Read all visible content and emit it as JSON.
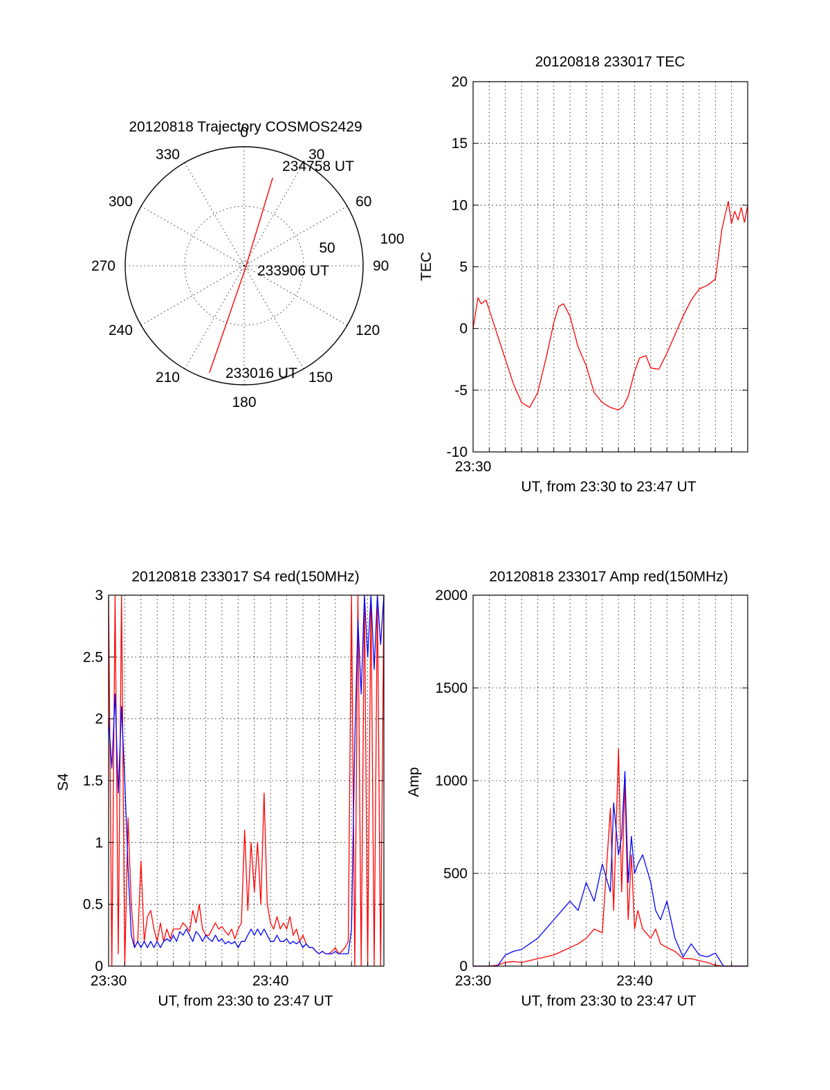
{
  "chart_data": [
    {
      "type": "polar",
      "title": "20120818 Trajectory COSMOS2429",
      "angle_labels": [
        "0",
        "30",
        "60",
        "90",
        "120",
        "150",
        "180",
        "210",
        "240",
        "270",
        "300",
        "330"
      ],
      "radial_labels": [
        "50",
        "100"
      ],
      "grid": true,
      "series": [
        {
          "color": "#ff0000",
          "points": [
            {
              "azimuth": 198,
              "elevation": 5
            },
            {
              "azimuth": 150,
              "elevation": 88
            },
            {
              "azimuth": 18,
              "elevation": 20
            }
          ]
        }
      ],
      "annotations": [
        "234758 UT",
        "233906 UT",
        "233016 UT"
      ]
    },
    {
      "type": "line",
      "title": "20120818 233017 TEC",
      "ylabel": "TEC",
      "xlabel": "UT, from 23:30 to 23:47 UT",
      "ylim": [
        -10,
        20
      ],
      "xlim": [
        0,
        17
      ],
      "yticks": [
        "-10",
        "-5",
        "0",
        "5",
        "10",
        "15",
        "20"
      ],
      "xticks": [
        {
          "x": 0,
          "label": "23:30"
        }
      ],
      "grid": true,
      "series": [
        {
          "color": "#ff0000",
          "x": [
            0,
            0.3,
            0.5,
            0.8,
            1.0,
            1.5,
            2.0,
            2.5,
            3.0,
            3.5,
            4.0,
            4.5,
            5.0,
            5.3,
            5.6,
            6.0,
            6.5,
            7.0,
            7.5,
            8.0,
            8.5,
            9.0,
            9.3,
            9.6,
            10.0,
            10.3,
            10.7,
            11.0,
            11.5,
            12.0,
            12.5,
            13.0,
            13.5,
            14.0,
            14.5,
            15.0,
            15.4,
            15.6,
            15.8,
            16.0,
            16.2,
            16.4,
            16.6,
            16.8,
            17.0
          ],
          "y": [
            0,
            2.5,
            2.0,
            2.3,
            1.5,
            -0.5,
            -2.5,
            -4.5,
            -6.0,
            -6.4,
            -5.2,
            -2.5,
            0.5,
            1.8,
            2.0,
            1.0,
            -1.5,
            -3.0,
            -5.2,
            -6.0,
            -6.4,
            -6.6,
            -6.3,
            -5.5,
            -3.5,
            -2.4,
            -2.2,
            -3.2,
            -3.3,
            -2.0,
            -0.5,
            1.0,
            2.3,
            3.2,
            3.5,
            4.0,
            8.0,
            9.2,
            10.3,
            8.5,
            9.5,
            8.8,
            9.8,
            8.6,
            10.0
          ]
        }
      ]
    },
    {
      "type": "line",
      "title": "20120818 233017 S4 red(150MHz)",
      "ylabel": "S4",
      "xlabel": "UT, from 23:30 to 23:47 UT",
      "ylim": [
        0,
        3
      ],
      "xlim": [
        0,
        17
      ],
      "yticks": [
        "0",
        "0.5",
        "1",
        "1.5",
        "2",
        "2.5",
        "3"
      ],
      "xticks": [
        {
          "x": 0,
          "label": "23:30"
        },
        {
          "x": 10,
          "label": "23:40"
        }
      ],
      "grid": true,
      "series": [
        {
          "color": "#ff0000",
          "x": [
            0.0,
            0.2,
            0.4,
            0.6,
            0.8,
            1.0,
            1.2,
            1.4,
            1.6,
            1.8,
            2.0,
            2.2,
            2.4,
            2.6,
            2.8,
            3.0,
            3.2,
            3.4,
            3.6,
            3.8,
            4.0,
            4.2,
            4.4,
            4.6,
            4.8,
            5.0,
            5.2,
            5.4,
            5.6,
            5.8,
            6.0,
            6.2,
            6.4,
            6.6,
            6.8,
            7.0,
            7.2,
            7.4,
            7.6,
            7.8,
            8.0,
            8.2,
            8.4,
            8.6,
            8.8,
            9.0,
            9.2,
            9.4,
            9.6,
            9.8,
            10.0,
            10.2,
            10.4,
            10.6,
            10.8,
            11.0,
            11.2,
            11.4,
            11.6,
            11.8,
            12.0,
            12.2,
            12.4,
            12.6,
            12.8,
            13.0,
            13.2,
            13.4,
            13.6,
            13.8,
            14.0,
            14.2,
            14.4,
            14.6,
            14.8,
            15.0,
            15.2,
            15.4,
            15.6,
            15.8,
            16.0,
            16.2,
            16.4,
            16.6,
            16.8,
            17.0
          ],
          "y": [
            3.0,
            0.0,
            3.0,
            0.1,
            3.0,
            0.0,
            1.2,
            0.5,
            0.15,
            0.2,
            0.85,
            0.2,
            0.4,
            0.45,
            0.3,
            0.2,
            0.35,
            0.2,
            0.3,
            0.22,
            0.3,
            0.3,
            0.3,
            0.35,
            0.32,
            0.28,
            0.45,
            0.35,
            0.5,
            0.3,
            0.25,
            0.25,
            0.3,
            0.35,
            0.3,
            0.32,
            0.28,
            0.25,
            0.3,
            0.22,
            0.3,
            0.35,
            1.1,
            0.45,
            1.0,
            0.6,
            1.0,
            0.5,
            1.4,
            0.5,
            0.35,
            0.3,
            0.4,
            0.3,
            0.35,
            0.3,
            0.4,
            0.25,
            0.3,
            0.2,
            0.25,
            0.18,
            0.15,
            0.15,
            0.12,
            0.1,
            0.12,
            0.1,
            0.1,
            0.12,
            0.15,
            0.1,
            0.12,
            0.15,
            0.2,
            3.0,
            0.0,
            3.0,
            0.0,
            3.0,
            0.0,
            3.0,
            0.0,
            3.0,
            0.0,
            3.0
          ]
        },
        {
          "color": "#0000ff",
          "x": [
            0.0,
            0.2,
            0.4,
            0.6,
            0.8,
            1.0,
            1.2,
            1.4,
            1.6,
            1.8,
            2.0,
            2.2,
            2.4,
            2.6,
            2.8,
            3.0,
            3.2,
            3.4,
            3.6,
            3.8,
            4.0,
            4.2,
            4.4,
            4.6,
            4.8,
            5.0,
            5.2,
            5.4,
            5.6,
            5.8,
            6.0,
            6.2,
            6.4,
            6.6,
            6.8,
            7.0,
            7.2,
            7.4,
            7.6,
            7.8,
            8.0,
            8.2,
            8.4,
            8.6,
            8.8,
            9.0,
            9.2,
            9.4,
            9.6,
            9.8,
            10.0,
            10.2,
            10.4,
            10.6,
            10.8,
            11.0,
            11.2,
            11.4,
            11.6,
            11.8,
            12.0,
            12.2,
            12.4,
            12.6,
            12.8,
            13.0,
            13.2,
            13.4,
            13.6,
            13.8,
            14.0,
            14.2,
            14.4,
            14.6,
            14.8,
            15.0,
            15.2,
            15.4,
            15.6,
            15.8,
            16.0,
            16.2,
            16.4,
            16.6,
            16.8,
            17.0
          ],
          "y": [
            2.0,
            1.6,
            2.2,
            1.4,
            2.1,
            1.5,
            0.8,
            0.25,
            0.15,
            0.2,
            0.15,
            0.2,
            0.15,
            0.2,
            0.15,
            0.2,
            0.15,
            0.2,
            0.22,
            0.2,
            0.25,
            0.2,
            0.28,
            0.25,
            0.3,
            0.25,
            0.2,
            0.28,
            0.25,
            0.2,
            0.25,
            0.22,
            0.2,
            0.25,
            0.2,
            0.22,
            0.18,
            0.2,
            0.18,
            0.2,
            0.15,
            0.2,
            0.2,
            0.25,
            0.3,
            0.25,
            0.3,
            0.25,
            0.3,
            0.25,
            0.2,
            0.2,
            0.25,
            0.2,
            0.2,
            0.22,
            0.18,
            0.2,
            0.18,
            0.2,
            0.15,
            0.18,
            0.15,
            0.15,
            0.12,
            0.1,
            0.12,
            0.1,
            0.1,
            0.1,
            0.12,
            0.1,
            0.1,
            0.1,
            0.1,
            0.3,
            1.8,
            2.8,
            2.2,
            3.0,
            2.5,
            3.0,
            2.4,
            3.0,
            2.6,
            3.0
          ]
        }
      ]
    },
    {
      "type": "line",
      "title": "20120818 233017 Amp red(150MHz)",
      "ylabel": "Amp",
      "xlabel": "UT, from 23:30 to 23:47 UT",
      "ylim": [
        0,
        2000
      ],
      "xlim": [
        0,
        17
      ],
      "yticks": [
        "0",
        "500",
        "1000",
        "1500",
        "2000"
      ],
      "xticks": [
        {
          "x": 0,
          "label": "23:30"
        },
        {
          "x": 10,
          "label": "23:40"
        }
      ],
      "grid": true,
      "series": [
        {
          "color": "#ff0000",
          "x": [
            0.0,
            0.5,
            1.0,
            1.5,
            2.0,
            2.5,
            3.0,
            3.5,
            4.0,
            4.5,
            5.0,
            5.5,
            6.0,
            6.5,
            7.0,
            7.5,
            8.0,
            8.5,
            8.7,
            9.0,
            9.2,
            9.4,
            9.6,
            9.8,
            10.0,
            10.2,
            10.5,
            11.0,
            11.3,
            11.6,
            12.0,
            12.5,
            13.0,
            13.5,
            14.0,
            14.5,
            15.0,
            15.5,
            16.0,
            17.0
          ],
          "y": [
            0,
            0,
            0,
            5,
            20,
            25,
            20,
            30,
            40,
            50,
            60,
            80,
            100,
            120,
            150,
            200,
            180,
            850,
            300,
            1170,
            400,
            1000,
            250,
            600,
            200,
            300,
            200,
            150,
            200,
            120,
            100,
            80,
            40,
            40,
            30,
            20,
            5,
            0,
            0,
            0
          ]
        },
        {
          "color": "#0000ff",
          "x": [
            0.0,
            0.5,
            1.0,
            1.5,
            2.0,
            2.5,
            3.0,
            3.5,
            4.0,
            4.5,
            5.0,
            5.5,
            6.0,
            6.5,
            7.0,
            7.5,
            8.0,
            8.5,
            8.7,
            9.0,
            9.2,
            9.4,
            9.6,
            9.8,
            10.0,
            10.2,
            10.5,
            11.0,
            11.3,
            11.6,
            12.0,
            12.5,
            13.0,
            13.5,
            14.0,
            14.5,
            15.0,
            15.5,
            16.0,
            17.0
          ],
          "y": [
            0,
            0,
            0,
            0,
            60,
            80,
            90,
            120,
            150,
            200,
            250,
            300,
            350,
            300,
            450,
            350,
            550,
            400,
            880,
            600,
            700,
            1050,
            450,
            700,
            500,
            550,
            600,
            450,
            300,
            250,
            350,
            150,
            50,
            120,
            60,
            50,
            70,
            0,
            0,
            0
          ]
        }
      ]
    }
  ]
}
